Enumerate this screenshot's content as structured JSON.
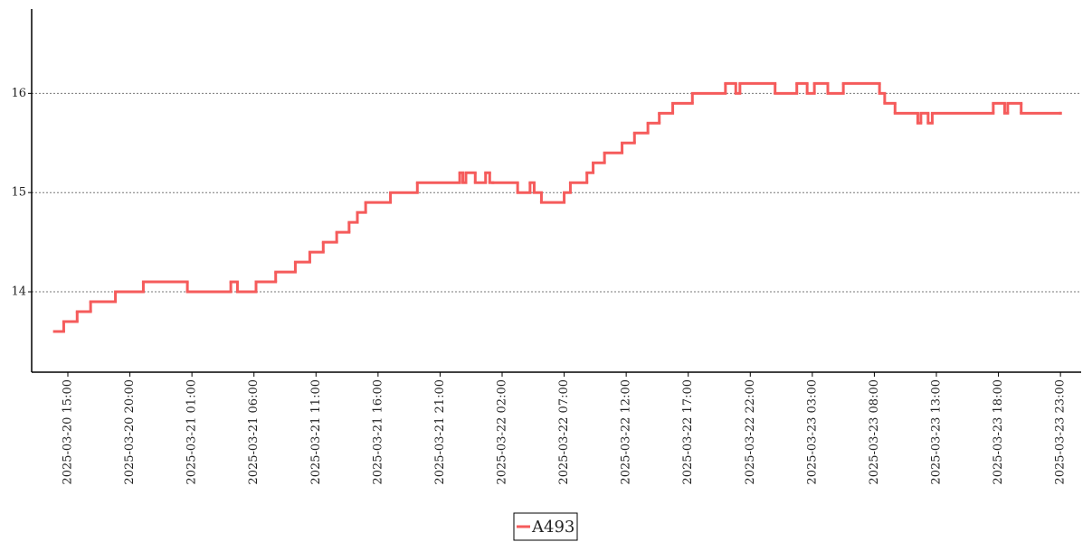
{
  "chart_data": {
    "type": "line",
    "step": "post",
    "x": [
      "2025-03-20 13:55",
      "2025-03-20 14:40",
      "2025-03-20 15:45",
      "2025-03-20 16:50",
      "2025-03-20 18:50",
      "2025-03-20 21:05",
      "2025-03-21 00:38",
      "2025-03-21 04:08",
      "2025-03-21 04:40",
      "2025-03-21 06:10",
      "2025-03-21 07:45",
      "2025-03-21 09:20",
      "2025-03-21 10:30",
      "2025-03-21 11:35",
      "2025-03-21 12:40",
      "2025-03-21 13:40",
      "2025-03-21 14:20",
      "2025-03-21 15:00",
      "2025-03-21 17:00",
      "2025-03-21 19:10",
      "2025-03-21 22:35",
      "2025-03-21 22:50",
      "2025-03-21 23:05",
      "2025-03-21 23:50",
      "2025-03-22 00:40",
      "2025-03-22 01:00",
      "2025-03-22 01:15",
      "2025-03-22 03:15",
      "2025-03-22 04:15",
      "2025-03-22 04:35",
      "2025-03-22 05:10",
      "2025-03-22 07:00",
      "2025-03-22 07:30",
      "2025-03-22 08:50",
      "2025-03-22 09:20",
      "2025-03-22 10:15",
      "2025-03-22 11:40",
      "2025-03-22 12:40",
      "2025-03-22 13:45",
      "2025-03-22 14:40",
      "2025-03-22 15:45",
      "2025-03-22 17:20",
      "2025-03-22 20:00",
      "2025-03-22 20:50",
      "2025-03-22 21:10",
      "2025-03-23 00:00",
      "2025-03-23 01:45",
      "2025-03-23 02:35",
      "2025-03-23 03:10",
      "2025-03-23 04:15",
      "2025-03-23 05:30",
      "2025-03-23 08:25",
      "2025-03-23 08:50",
      "2025-03-23 09:40",
      "2025-03-23 11:30",
      "2025-03-23 11:45",
      "2025-03-23 12:20",
      "2025-03-23 12:40",
      "2025-03-23 17:35",
      "2025-03-23 18:30",
      "2025-03-23 18:45",
      "2025-03-23 19:50",
      "2025-03-23 23:00"
    ],
    "series": [
      {
        "name": "A493",
        "color": "#f55b5b",
        "values": [
          13.6,
          13.7,
          13.8,
          13.9,
          14.0,
          14.1,
          14.0,
          14.1,
          14.0,
          14.1,
          14.2,
          14.3,
          14.4,
          14.5,
          14.6,
          14.7,
          14.8,
          14.9,
          15.0,
          15.1,
          15.2,
          15.1,
          15.2,
          15.1,
          15.2,
          15.1,
          15.1,
          15.0,
          15.1,
          15.0,
          14.9,
          15.0,
          15.1,
          15.2,
          15.3,
          15.4,
          15.5,
          15.6,
          15.7,
          15.8,
          15.9,
          16.0,
          16.1,
          16.0,
          16.1,
          16.0,
          16.1,
          16.0,
          16.1,
          16.0,
          16.1,
          16.0,
          15.9,
          15.8,
          15.7,
          15.8,
          15.7,
          15.8,
          15.9,
          15.8,
          15.9,
          15.8,
          15.8
        ]
      }
    ],
    "xlim": [
      "2025-03-20 12:05",
      "2025-03-24 00:40"
    ],
    "xticks": [
      "2025-03-20 15:00",
      "2025-03-20 20:00",
      "2025-03-21 01:00",
      "2025-03-21 06:00",
      "2025-03-21 11:00",
      "2025-03-21 16:00",
      "2025-03-21 21:00",
      "2025-03-22 02:00",
      "2025-03-22 07:00",
      "2025-03-22 12:00",
      "2025-03-22 17:00",
      "2025-03-22 22:00",
      "2025-03-23 03:00",
      "2025-03-23 08:00",
      "2025-03-23 13:00",
      "2025-03-23 18:00",
      "2025-03-23 23:00"
    ],
    "ylim": [
      13.19,
      16.85
    ],
    "yticks": [
      14,
      15,
      16
    ],
    "grid": true,
    "legend": "bottom"
  }
}
